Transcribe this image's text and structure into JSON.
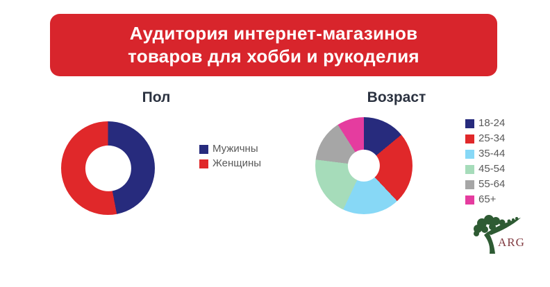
{
  "header": {
    "title_line1": "Аудитория интернет-магазинов",
    "title_line2": "товаров для хобби и рукоделия"
  },
  "colors": {
    "background": "#FFFFFF",
    "banner": "#D8252C",
    "banner_text": "#FFFFFF",
    "chart_title_text": "#2B3240",
    "legend_text": "#595959",
    "logo_text": "#803A40",
    "logo_tree": "#2E5B33"
  },
  "chart_data": [
    {
      "type": "pie",
      "subtype": "donut",
      "title": "Пол",
      "labels": [
        "Мужичны",
        "Женщины"
      ],
      "values": [
        47,
        53
      ],
      "colors": [
        "#272B7D",
        "#E0282A"
      ],
      "donut_hole": 0.49,
      "legend_position": "right",
      "start_angle_deg": 0
    },
    {
      "type": "pie",
      "subtype": "donut",
      "title": "Возраст",
      "labels": [
        "18-24",
        "25-34",
        "35-44",
        "45-54",
        "55-64",
        "65+"
      ],
      "values": [
        14,
        24,
        19,
        20,
        14,
        9
      ],
      "colors": [
        "#272B7D",
        "#E0282A",
        "#87D8F6",
        "#A6DCBA",
        "#A6A6A6",
        "#E53C9F"
      ],
      "donut_hole": 0.33,
      "legend_position": "right",
      "start_angle_deg": 0
    }
  ],
  "logo": {
    "text": "ARG"
  }
}
